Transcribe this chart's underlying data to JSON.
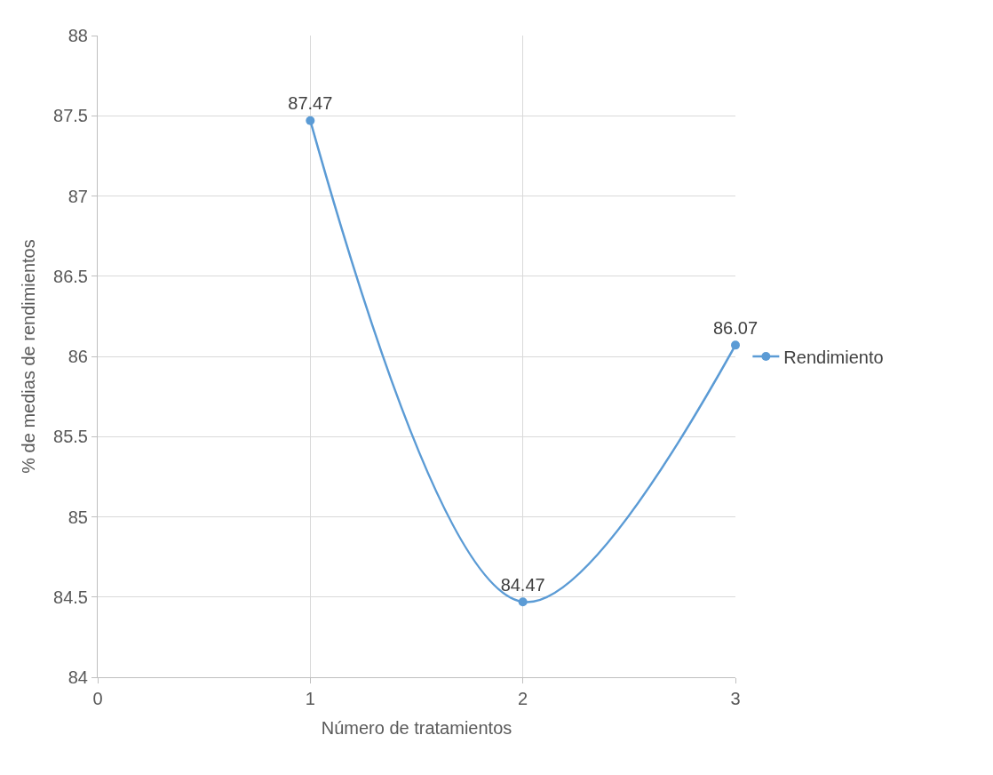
{
  "chart_data": {
    "type": "line",
    "xlabel": "Número de tratamientos",
    "ylabel": "% de medias de rendimientos",
    "x": [
      1,
      2,
      3
    ],
    "series": [
      {
        "name": "Rendimiento",
        "color": "#5b9bd5",
        "values": [
          87.47,
          84.47,
          86.07
        ]
      }
    ],
    "xlim": [
      0,
      3
    ],
    "xticks": [
      0,
      1,
      2,
      3
    ],
    "ylim": [
      84,
      88
    ],
    "yticks": [
      84,
      84.5,
      85,
      85.5,
      86,
      86.5,
      87,
      87.5,
      88
    ],
    "grid": true,
    "legend": "right",
    "marker": "circle",
    "line_style": "solid",
    "data_labels": true
  }
}
